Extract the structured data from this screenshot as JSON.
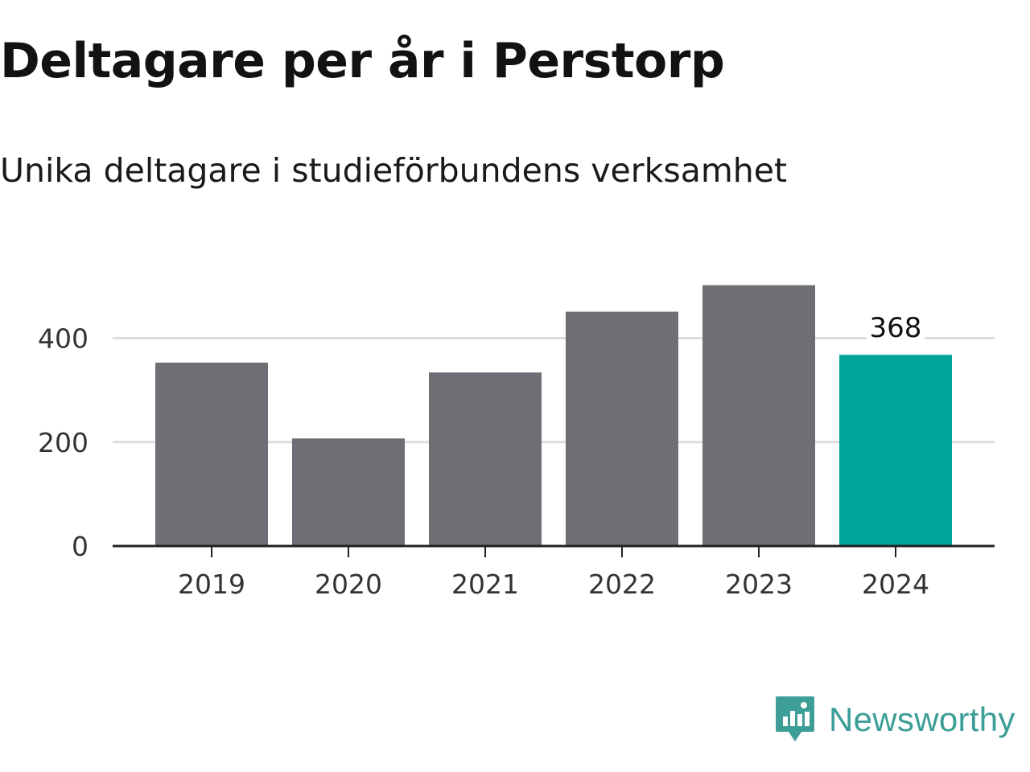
{
  "title": "Deltagare per år i Perstorp",
  "subtitle": "Unika deltagare i studieförbundens verksamhet",
  "brand": {
    "name": "Newsworthy",
    "icon": "newsworthy-logo-icon",
    "color": "#3c9e97"
  },
  "colors": {
    "bar": "#6f6e74",
    "highlight": "#00a59a",
    "grid": "#dddddd",
    "axis": "#222222"
  },
  "chart_data": {
    "type": "bar",
    "categories": [
      "2019",
      "2020",
      "2021",
      "2022",
      "2023",
      "2024"
    ],
    "values": [
      353,
      207,
      334,
      451,
      502,
      368
    ],
    "highlight_index": 5,
    "data_labels": [
      {
        "index": 5,
        "text": "368"
      }
    ],
    "title": "Deltagare per år i Perstorp",
    "subtitle": "Unika deltagare i studieförbundens verksamhet",
    "xlabel": "",
    "ylabel": "",
    "yticks": [
      0,
      200,
      400
    ],
    "ytick_labels": [
      "0",
      "200",
      "400"
    ],
    "ylim": [
      0,
      520
    ],
    "grid": true,
    "legend": "none"
  }
}
